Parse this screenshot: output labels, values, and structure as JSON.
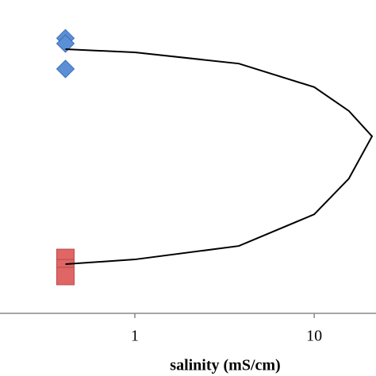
{
  "chart_data": {
    "type": "scatter",
    "xlabel": "salinity (mS/cm)",
    "xscale": "log",
    "xlim": [
      0.177,
      22.1
    ],
    "xticks": [
      1,
      10
    ],
    "ylim": [
      0,
      1
    ],
    "series": [
      {
        "color": "#5b8fd6",
        "marker": "diamond",
        "x": [
          0.41,
          0.41,
          0.41
        ],
        "values": [
          0.878,
          0.861,
          0.78
        ]
      },
      {
        "color": "#e06666",
        "marker": "square",
        "x": [
          0.41,
          0.41,
          0.41
        ],
        "values": [
          0.177,
          0.144,
          0.119
        ]
      },
      {
        "color": "#000000",
        "marker": "line",
        "x": [
          0.41,
          1,
          3.8,
          10,
          15.6,
          21,
          15.6,
          10,
          3.8,
          1,
          0.41
        ],
        "values": [
          0.843,
          0.833,
          0.797,
          0.722,
          0.646,
          0.565,
          0.43,
          0.316,
          0.215,
          0.172,
          0.157
        ]
      }
    ]
  }
}
